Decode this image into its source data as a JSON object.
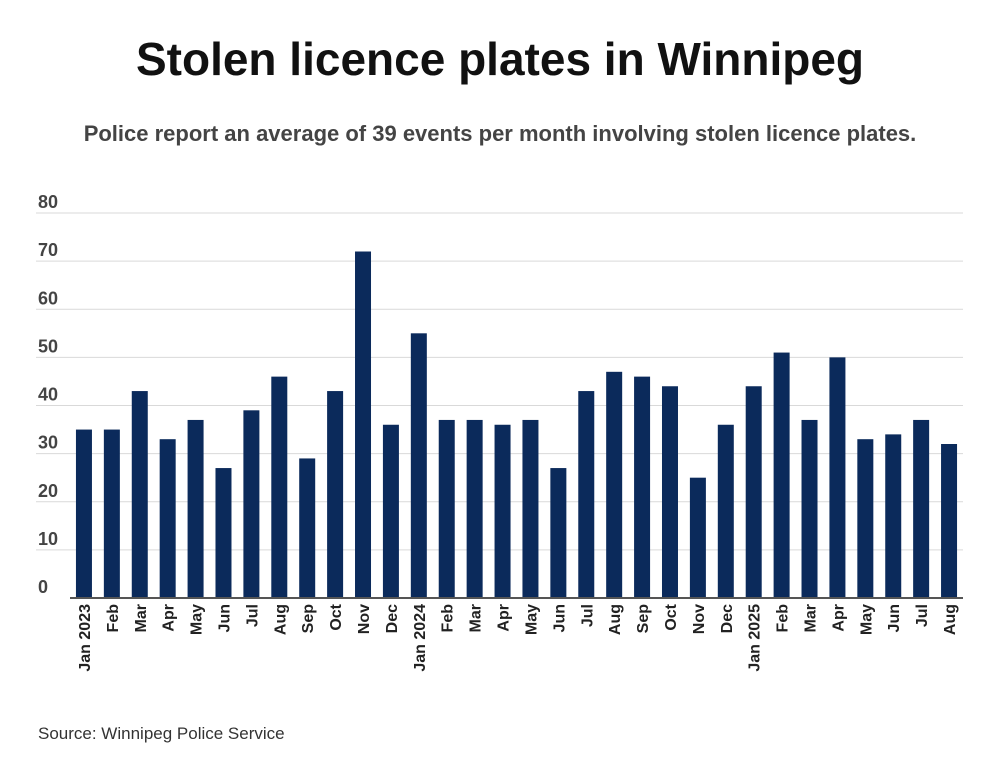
{
  "title": "Stolen licence plates in Winnipeg",
  "subtitle": "Police report an average of 39 events per month involving stolen licence plates.",
  "source": "Source: Winnipeg Police Service",
  "colors": {
    "bar": "#0b2a5b",
    "grid": "#d9d9d9",
    "axis": "#555555"
  },
  "chart_data": {
    "type": "bar",
    "title": "Stolen licence plates in Winnipeg",
    "subtitle": "Police report an average of 39 events per month involving stolen licence plates.",
    "xlabel": "",
    "ylabel": "",
    "ylim": [
      0,
      80
    ],
    "yticks": [
      0,
      10,
      20,
      30,
      40,
      50,
      60,
      70,
      80
    ],
    "grid": true,
    "categories": [
      "Jan 2023",
      "Feb",
      "Mar",
      "Apr",
      "May",
      "Jun",
      "Jul",
      "Aug",
      "Sep",
      "Oct",
      "Nov",
      "Dec",
      "Jan 2024",
      "Feb",
      "Mar",
      "Apr",
      "May",
      "Jun",
      "Jul",
      "Aug",
      "Sep",
      "Oct",
      "Nov",
      "Dec",
      "Jan 2025",
      "Feb",
      "Mar",
      "Apr",
      "May",
      "Jun",
      "Jul",
      "Aug"
    ],
    "values": [
      35,
      35,
      43,
      33,
      37,
      27,
      39,
      46,
      29,
      43,
      72,
      36,
      55,
      37,
      37,
      36,
      37,
      27,
      43,
      47,
      46,
      44,
      25,
      36,
      44,
      51,
      37,
      50,
      33,
      34,
      37,
      32
    ]
  }
}
